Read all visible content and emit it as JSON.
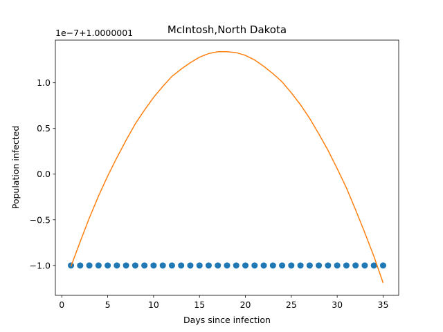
{
  "chart_data": {
    "type": "line",
    "title": "McIntosh,North Dakota",
    "xlabel": "Days since infection",
    "ylabel": "Population infected",
    "offset_label": "1e−7+1.0000001",
    "x": [
      1,
      2,
      3,
      4,
      5,
      6,
      7,
      8,
      9,
      10,
      11,
      12,
      13,
      14,
      15,
      16,
      17,
      18,
      19,
      20,
      21,
      22,
      23,
      24,
      25,
      26,
      27,
      28,
      29,
      30,
      31,
      32,
      33,
      34,
      35
    ],
    "series": [
      {
        "type": "scatter",
        "color": "#1f77b4",
        "values": [
          -1.0,
          -1.0,
          -1.0,
          -1.0,
          -1.0,
          -1.0,
          -1.0,
          -1.0,
          -1.0,
          -1.0,
          -1.0,
          -1.0,
          -1.0,
          -1.0,
          -1.0,
          -1.0,
          -1.0,
          -1.0,
          -1.0,
          -1.0,
          -1.0,
          -1.0,
          -1.0,
          -1.0,
          -1.0,
          -1.0,
          -1.0,
          -1.0,
          -1.0,
          -1.0,
          -1.0,
          -1.0,
          -1.0,
          -1.0,
          -1.0
        ]
      },
      {
        "type": "line",
        "color": "#ff7f0e",
        "values": [
          -1.01,
          -0.74,
          -0.48,
          -0.24,
          -0.02,
          0.18,
          0.37,
          0.55,
          0.7,
          0.84,
          0.96,
          1.07,
          1.15,
          1.22,
          1.28,
          1.32,
          1.34,
          1.34,
          1.33,
          1.3,
          1.25,
          1.18,
          1.1,
          1.01,
          0.89,
          0.76,
          0.61,
          0.44,
          0.26,
          0.06,
          -0.15,
          -0.39,
          -0.64,
          -0.9,
          -1.19
        ]
      }
    ],
    "xlim": [
      -0.7,
      36.7
    ],
    "ylim": [
      -1.327,
      1.467
    ],
    "xticks": [
      0,
      5,
      10,
      15,
      20,
      25,
      30,
      35
    ],
    "yticks": [
      {
        "value": -1.0,
        "label": "−1.0"
      },
      {
        "value": -0.5,
        "label": "−0.5"
      },
      {
        "value": 0.0,
        "label": "0.0"
      },
      {
        "value": 0.5,
        "label": "0.5"
      },
      {
        "value": 1.0,
        "label": "1.0"
      }
    ],
    "grid": false
  }
}
